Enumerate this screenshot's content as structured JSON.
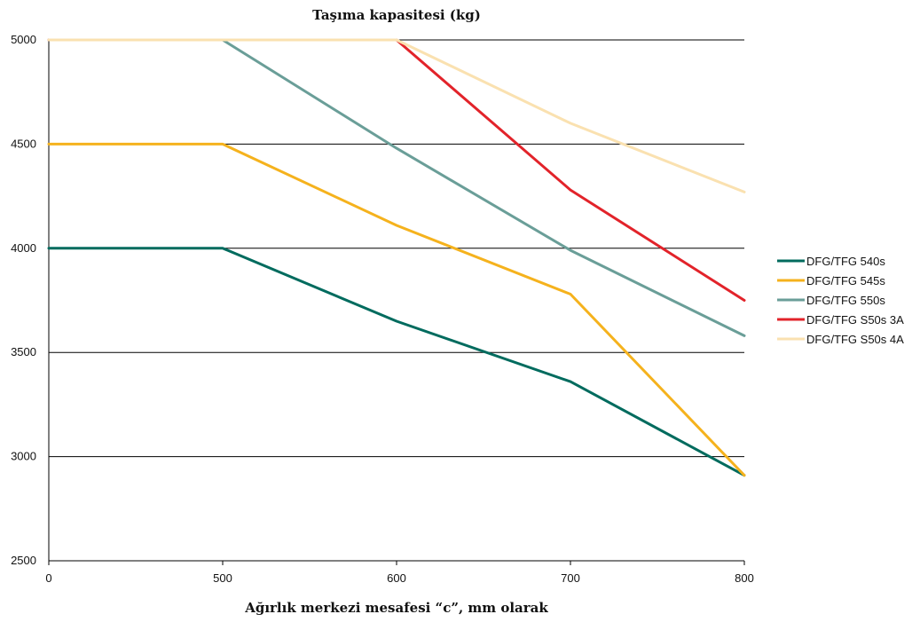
{
  "chart_data": {
    "type": "line",
    "title": "Taşıma kapasitesi (kg)",
    "xlabel": "Ağırlık merkezi mesafesi “c”, mm olarak",
    "ylabel": "",
    "x_categories": [
      "0",
      "500",
      "600",
      "700",
      "800"
    ],
    "y_ticks": [
      2500,
      3000,
      3500,
      4000,
      4500,
      5000
    ],
    "ylim": [
      2500,
      5000
    ],
    "grid": true,
    "legend_position": "right",
    "series": [
      {
        "name": "DFG/TFG 540s",
        "color": "#006B5E",
        "values": [
          4000,
          4000,
          3650,
          3360,
          2910
        ]
      },
      {
        "name": "DFG/TFG 545s",
        "color": "#F5B21D",
        "values": [
          4500,
          4500,
          4110,
          3780,
          2910
        ]
      },
      {
        "name": "DFG/TFG 550s",
        "color": "#6A9E98",
        "values": [
          5000,
          5000,
          4480,
          3990,
          3580
        ]
      },
      {
        "name": "DFG/TFG S50s 3A",
        "color": "#E2232A",
        "values": [
          5000,
          5000,
          5000,
          4280,
          3750
        ]
      },
      {
        "name": "DFG/TFG S50s 4A",
        "color": "#FAE1B0",
        "values": [
          5000,
          5000,
          5000,
          4600,
          4270
        ]
      }
    ]
  }
}
